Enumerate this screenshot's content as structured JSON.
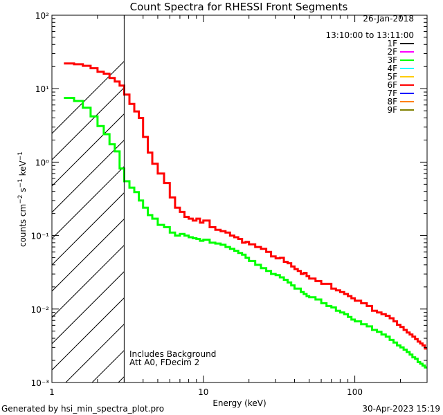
{
  "chart_data": {
    "type": "line",
    "title": "Count Spectra for RHESSI Front Segments",
    "xlabel": "Energy (keV)",
    "ylabel": "counts cm⁻² s⁻¹ keV⁻¹",
    "x_scale": "log",
    "y_scale": "log",
    "xlim": [
      1,
      300
    ],
    "ylim": [
      0.001,
      100
    ],
    "x_ticks": [
      {
        "value": 1,
        "label": "1"
      },
      {
        "value": 10,
        "label": "10"
      },
      {
        "value": 100,
        "label": "100"
      }
    ],
    "y_ticks": [
      {
        "value": 100,
        "label": "10²"
      },
      {
        "value": 10,
        "label": "10¹"
      },
      {
        "value": 1,
        "label": "10⁰"
      },
      {
        "value": 0.1,
        "label": "10⁻¹"
      },
      {
        "value": 0.01,
        "label": "10⁻²"
      },
      {
        "value": 0.001,
        "label": "10⁻³"
      }
    ],
    "hatched_region": {
      "x_from": 1,
      "x_to": 3,
      "note": "energies below 3 keV excluded"
    },
    "date": "26-Jan-2018",
    "time_range": "13:10:00 to 13:11:00",
    "legend": [
      {
        "name": "1F",
        "color": "#000000"
      },
      {
        "name": "2F",
        "color": "#ff00ff"
      },
      {
        "name": "3F",
        "color": "#00ff00"
      },
      {
        "name": "4F",
        "color": "#00ffff"
      },
      {
        "name": "5F",
        "color": "#ffcc00"
      },
      {
        "name": "6F",
        "color": "#ff0000"
      },
      {
        "name": "7F",
        "color": "#0000ff"
      },
      {
        "name": "8F",
        "color": "#ff7f00"
      },
      {
        "name": "9F",
        "color": "#808000"
      }
    ],
    "annotations": [
      "Includes Background",
      "Att A0, FDecim 2"
    ],
    "series": [
      {
        "name": "6F",
        "color": "#ff0000",
        "x": [
          1.2,
          1.4,
          1.6,
          1.8,
          2.0,
          2.2,
          2.4,
          2.6,
          2.8,
          3.0,
          3.25,
          3.5,
          3.75,
          4.0,
          4.3,
          4.6,
          5.0,
          5.5,
          6.0,
          6.5,
          7.0,
          7.5,
          8.0,
          8.5,
          9.0,
          9.5,
          10,
          11,
          12,
          13,
          14,
          15,
          16,
          17,
          18,
          19,
          20,
          22,
          24,
          26,
          28,
          30,
          32,
          34,
          36,
          38,
          40,
          42,
          44,
          46,
          48,
          50,
          55,
          60,
          65,
          70,
          75,
          80,
          85,
          90,
          95,
          100,
          110,
          120,
          130,
          140,
          150,
          160,
          170,
          180,
          190,
          200,
          210,
          220,
          230,
          240,
          250,
          260,
          270,
          280,
          290
        ],
        "y": [
          22,
          21.5,
          20.5,
          19,
          17,
          16,
          14,
          12.5,
          11,
          8.3,
          6.2,
          4.9,
          4.0,
          2.2,
          1.35,
          0.95,
          0.7,
          0.52,
          0.33,
          0.24,
          0.21,
          0.18,
          0.17,
          0.16,
          0.17,
          0.15,
          0.16,
          0.13,
          0.12,
          0.115,
          0.11,
          0.1,
          0.095,
          0.09,
          0.08,
          0.082,
          0.076,
          0.07,
          0.066,
          0.06,
          0.052,
          0.049,
          0.05,
          0.044,
          0.042,
          0.038,
          0.035,
          0.033,
          0.03,
          0.031,
          0.028,
          0.026,
          0.024,
          0.022,
          0.022,
          0.019,
          0.018,
          0.017,
          0.016,
          0.015,
          0.014,
          0.013,
          0.012,
          0.011,
          0.0095,
          0.009,
          0.0085,
          0.0081,
          0.0075,
          0.0068,
          0.0061,
          0.0057,
          0.0052,
          0.0048,
          0.0045,
          0.0042,
          0.0039,
          0.0036,
          0.0034,
          0.0032,
          0.0029
        ]
      },
      {
        "name": "3F",
        "color": "#00ff00",
        "x": [
          1.2,
          1.4,
          1.6,
          1.8,
          2.0,
          2.2,
          2.4,
          2.6,
          2.8,
          3.0,
          3.25,
          3.5,
          3.75,
          4.0,
          4.3,
          4.6,
          5.0,
          5.5,
          6.0,
          6.5,
          7.0,
          7.5,
          8.0,
          8.5,
          9.0,
          9.5,
          10,
          11,
          12,
          13,
          14,
          15,
          16,
          17,
          18,
          19,
          20,
          22,
          24,
          26,
          28,
          30,
          32,
          34,
          36,
          38,
          40,
          42,
          44,
          46,
          48,
          50,
          55,
          60,
          65,
          70,
          75,
          80,
          85,
          90,
          95,
          100,
          110,
          120,
          130,
          140,
          150,
          160,
          170,
          180,
          190,
          200,
          210,
          220,
          230,
          240,
          250,
          260,
          270,
          280,
          290
        ],
        "y": [
          7.5,
          6.8,
          5.5,
          4.2,
          3.1,
          2.4,
          1.75,
          1.4,
          0.82,
          0.55,
          0.45,
          0.39,
          0.3,
          0.24,
          0.19,
          0.17,
          0.14,
          0.13,
          0.11,
          0.1,
          0.105,
          0.1,
          0.095,
          0.092,
          0.09,
          0.085,
          0.088,
          0.08,
          0.078,
          0.075,
          0.07,
          0.066,
          0.062,
          0.058,
          0.055,
          0.05,
          0.045,
          0.04,
          0.036,
          0.033,
          0.03,
          0.029,
          0.027,
          0.025,
          0.023,
          0.021,
          0.019,
          0.019,
          0.017,
          0.016,
          0.015,
          0.0145,
          0.0135,
          0.012,
          0.011,
          0.0105,
          0.0095,
          0.009,
          0.0085,
          0.0078,
          0.0072,
          0.0068,
          0.0062,
          0.0058,
          0.0052,
          0.0049,
          0.0045,
          0.0042,
          0.0038,
          0.0035,
          0.0032,
          0.003,
          0.0028,
          0.0026,
          0.0024,
          0.0022,
          0.0021,
          0.0019,
          0.0018,
          0.0017,
          0.0016
        ]
      }
    ]
  },
  "footer": {
    "generated_by": "Generated by hsi_min_spectra_plot.pro",
    "timestamp": "30-Apr-2023 15:19"
  }
}
